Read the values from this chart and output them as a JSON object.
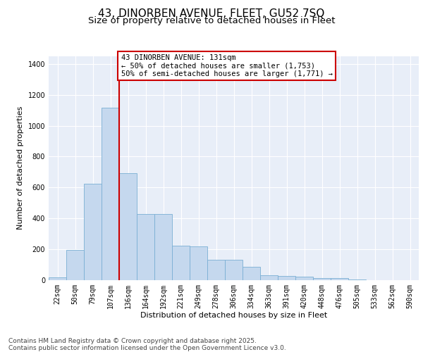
{
  "title_line1": "43, DINORBEN AVENUE, FLEET, GU52 7SQ",
  "title_line2": "Size of property relative to detached houses in Fleet",
  "xlabel": "Distribution of detached houses by size in Fleet",
  "ylabel": "Number of detached properties",
  "categories": [
    "22sqm",
    "50sqm",
    "79sqm",
    "107sqm",
    "136sqm",
    "164sqm",
    "192sqm",
    "221sqm",
    "249sqm",
    "278sqm",
    "306sqm",
    "334sqm",
    "363sqm",
    "391sqm",
    "420sqm",
    "448sqm",
    "476sqm",
    "505sqm",
    "533sqm",
    "562sqm",
    "590sqm"
  ],
  "values": [
    15,
    195,
    625,
    1115,
    690,
    425,
    425,
    220,
    215,
    130,
    130,
    85,
    30,
    25,
    22,
    10,
    10,
    3,
    0,
    0,
    0
  ],
  "bar_color": "#c5d8ee",
  "bar_edge_color": "#7aafd4",
  "vline_color": "#cc0000",
  "vline_pos": 3.5,
  "annotation_text": "43 DINORBEN AVENUE: 131sqm\n← 50% of detached houses are smaller (1,753)\n50% of semi-detached houses are larger (1,771) →",
  "annotation_box_facecolor": "#ffffff",
  "annotation_box_edgecolor": "#cc0000",
  "ylim_max": 1450,
  "yticks": [
    0,
    200,
    400,
    600,
    800,
    1000,
    1200,
    1400
  ],
  "bg_color": "#e8eef8",
  "grid_color": "#ffffff",
  "footer_text": "Contains HM Land Registry data © Crown copyright and database right 2025.\nContains public sector information licensed under the Open Government Licence v3.0.",
  "title_fontsize": 11,
  "subtitle_fontsize": 9.5,
  "ylabel_fontsize": 8,
  "xlabel_fontsize": 8,
  "tick_fontsize": 7,
  "annot_fontsize": 7.5,
  "footer_fontsize": 6.5
}
